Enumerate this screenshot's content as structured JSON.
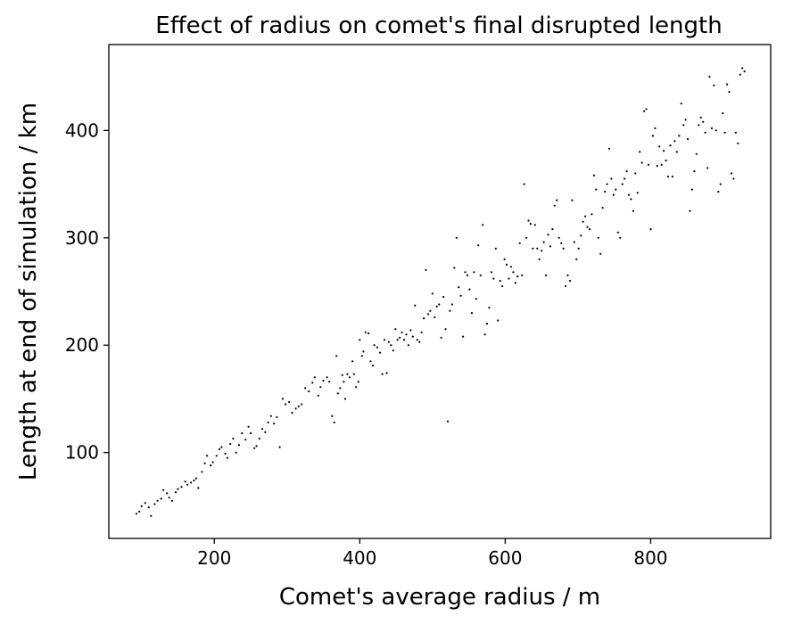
{
  "chart_data": {
    "type": "scatter",
    "title": "Effect of radius on comet's final disrupted length",
    "xlabel": "Comet's average radius / m",
    "ylabel": "Length at end of simulation / km",
    "xlim": [
      55,
      965
    ],
    "ylim": [
      20,
      480
    ],
    "xticks": [
      200,
      400,
      600,
      800
    ],
    "yticks": [
      100,
      200,
      300,
      400
    ],
    "grid": false,
    "marker_color": "#000000",
    "points": [
      [
        93,
        43
      ],
      [
        97,
        45
      ],
      [
        100,
        50
      ],
      [
        105,
        53
      ],
      [
        110,
        49
      ],
      [
        113,
        41
      ],
      [
        118,
        52
      ],
      [
        122,
        55
      ],
      [
        127,
        57
      ],
      [
        130,
        65
      ],
      [
        135,
        62
      ],
      [
        138,
        58
      ],
      [
        142,
        55
      ],
      [
        147,
        63
      ],
      [
        150,
        66
      ],
      [
        155,
        68
      ],
      [
        160,
        73
      ],
      [
        163,
        70
      ],
      [
        168,
        72
      ],
      [
        172,
        74
      ],
      [
        175,
        76
      ],
      [
        178,
        67
      ],
      [
        183,
        82
      ],
      [
        187,
        90
      ],
      [
        190,
        97
      ],
      [
        195,
        88
      ],
      [
        198,
        91
      ],
      [
        203,
        97
      ],
      [
        207,
        103
      ],
      [
        210,
        105
      ],
      [
        215,
        99
      ],
      [
        218,
        95
      ],
      [
        222,
        108
      ],
      [
        226,
        113
      ],
      [
        230,
        100
      ],
      [
        234,
        107
      ],
      [
        238,
        118
      ],
      [
        243,
        112
      ],
      [
        247,
        124
      ],
      [
        250,
        118
      ],
      [
        255,
        104
      ],
      [
        258,
        106
      ],
      [
        262,
        113
      ],
      [
        266,
        122
      ],
      [
        270,
        119
      ],
      [
        274,
        128
      ],
      [
        278,
        134
      ],
      [
        282,
        127
      ],
      [
        286,
        133
      ],
      [
        290,
        105
      ],
      [
        294,
        150
      ],
      [
        298,
        145
      ],
      [
        303,
        147
      ],
      [
        307,
        137
      ],
      [
        312,
        141
      ],
      [
        316,
        143
      ],
      [
        320,
        145
      ],
      [
        325,
        160
      ],
      [
        330,
        157
      ],
      [
        335,
        165
      ],
      [
        338,
        170
      ],
      [
        343,
        153
      ],
      [
        346,
        161
      ],
      [
        350,
        167
      ],
      [
        355,
        170
      ],
      [
        358,
        166
      ],
      [
        362,
        134
      ],
      [
        365,
        128
      ],
      [
        368,
        190
      ],
      [
        370,
        155
      ],
      [
        373,
        160
      ],
      [
        376,
        172
      ],
      [
        378,
        166
      ],
      [
        380,
        150
      ],
      [
        383,
        173
      ],
      [
        386,
        170
      ],
      [
        390,
        185
      ],
      [
        392,
        173
      ],
      [
        395,
        161
      ],
      [
        398,
        166
      ],
      [
        400,
        205
      ],
      [
        403,
        190
      ],
      [
        405,
        194
      ],
      [
        408,
        212
      ],
      [
        412,
        211
      ],
      [
        415,
        185
      ],
      [
        418,
        181
      ],
      [
        420,
        200
      ],
      [
        424,
        198
      ],
      [
        428,
        193
      ],
      [
        431,
        173
      ],
      [
        434,
        205
      ],
      [
        437,
        174
      ],
      [
        440,
        203
      ],
      [
        443,
        200
      ],
      [
        446,
        195
      ],
      [
        449,
        215
      ],
      [
        452,
        205
      ],
      [
        455,
        207
      ],
      [
        458,
        212
      ],
      [
        461,
        205
      ],
      [
        464,
        210
      ],
      [
        467,
        200
      ],
      [
        470,
        214
      ],
      [
        473,
        208
      ],
      [
        476,
        237
      ],
      [
        479,
        205
      ],
      [
        482,
        203
      ],
      [
        485,
        212
      ],
      [
        488,
        225
      ],
      [
        491,
        270
      ],
      [
        494,
        229
      ],
      [
        497,
        232
      ],
      [
        500,
        248
      ],
      [
        503,
        226
      ],
      [
        506,
        236
      ],
      [
        509,
        238
      ],
      [
        512,
        207
      ],
      [
        515,
        245
      ],
      [
        518,
        215
      ],
      [
        521,
        129
      ],
      [
        524,
        232
      ],
      [
        527,
        238
      ],
      [
        530,
        272
      ],
      [
        533,
        300
      ],
      [
        536,
        254
      ],
      [
        539,
        246
      ],
      [
        542,
        208
      ],
      [
        545,
        268
      ],
      [
        548,
        265
      ],
      [
        551,
        252
      ],
      [
        554,
        230
      ],
      [
        557,
        268
      ],
      [
        560,
        243
      ],
      [
        563,
        293
      ],
      [
        566,
        265
      ],
      [
        569,
        312
      ],
      [
        572,
        210
      ],
      [
        575,
        220
      ],
      [
        578,
        235
      ],
      [
        581,
        268
      ],
      [
        584,
        262
      ],
      [
        587,
        290
      ],
      [
        590,
        223
      ],
      [
        593,
        260
      ],
      [
        596,
        255
      ],
      [
        599,
        280
      ],
      [
        602,
        275
      ],
      [
        605,
        262
      ],
      [
        608,
        273
      ],
      [
        611,
        268
      ],
      [
        614,
        258
      ],
      [
        617,
        264
      ],
      [
        620,
        295
      ],
      [
        623,
        265
      ],
      [
        626,
        350
      ],
      [
        629,
        300
      ],
      [
        632,
        316
      ],
      [
        635,
        313
      ],
      [
        638,
        290
      ],
      [
        641,
        312
      ],
      [
        644,
        290
      ],
      [
        647,
        280
      ],
      [
        650,
        288
      ],
      [
        653,
        296
      ],
      [
        656,
        265
      ],
      [
        659,
        303
      ],
      [
        662,
        292
      ],
      [
        665,
        308
      ],
      [
        668,
        330
      ],
      [
        671,
        335
      ],
      [
        674,
        300
      ],
      [
        677,
        295
      ],
      [
        680,
        290
      ],
      [
        683,
        255
      ],
      [
        686,
        265
      ],
      [
        689,
        260
      ],
      [
        692,
        335
      ],
      [
        695,
        296
      ],
      [
        698,
        280
      ],
      [
        701,
        290
      ],
      [
        704,
        302
      ],
      [
        707,
        315
      ],
      [
        710,
        320
      ],
      [
        713,
        310
      ],
      [
        716,
        308
      ],
      [
        719,
        322
      ],
      [
        722,
        358
      ],
      [
        725,
        345
      ],
      [
        728,
        300
      ],
      [
        731,
        285
      ],
      [
        734,
        328
      ],
      [
        737,
        343
      ],
      [
        740,
        350
      ],
      [
        743,
        383
      ],
      [
        746,
        355
      ],
      [
        749,
        340
      ],
      [
        752,
        345
      ],
      [
        755,
        305
      ],
      [
        758,
        300
      ],
      [
        761,
        350
      ],
      [
        764,
        355
      ],
      [
        767,
        362
      ],
      [
        770,
        340
      ],
      [
        773,
        336
      ],
      [
        776,
        325
      ],
      [
        779,
        360
      ],
      [
        782,
        342
      ],
      [
        785,
        380
      ],
      [
        788,
        370
      ],
      [
        791,
        418
      ],
      [
        794,
        420
      ],
      [
        797,
        368
      ],
      [
        800,
        308
      ],
      [
        803,
        395
      ],
      [
        806,
        402
      ],
      [
        809,
        367
      ],
      [
        812,
        385
      ],
      [
        815,
        368
      ],
      [
        818,
        381
      ],
      [
        821,
        372
      ],
      [
        824,
        357
      ],
      [
        827,
        386
      ],
      [
        830,
        357
      ],
      [
        833,
        390
      ],
      [
        836,
        380
      ],
      [
        839,
        395
      ],
      [
        842,
        425
      ],
      [
        845,
        405
      ],
      [
        848,
        410
      ],
      [
        851,
        392
      ],
      [
        854,
        325
      ],
      [
        857,
        345
      ],
      [
        860,
        362
      ],
      [
        863,
        378
      ],
      [
        866,
        405
      ],
      [
        869,
        412
      ],
      [
        872,
        408
      ],
      [
        875,
        398
      ],
      [
        878,
        365
      ],
      [
        881,
        450
      ],
      [
        884,
        402
      ],
      [
        887,
        442
      ],
      [
        890,
        400
      ],
      [
        893,
        343
      ],
      [
        896,
        350
      ],
      [
        899,
        416
      ],
      [
        902,
        398
      ],
      [
        905,
        443
      ],
      [
        908,
        436
      ],
      [
        911,
        360
      ],
      [
        914,
        355
      ],
      [
        917,
        398
      ],
      [
        920,
        388
      ],
      [
        923,
        452
      ],
      [
        926,
        458
      ],
      [
        929,
        455
      ]
    ]
  }
}
